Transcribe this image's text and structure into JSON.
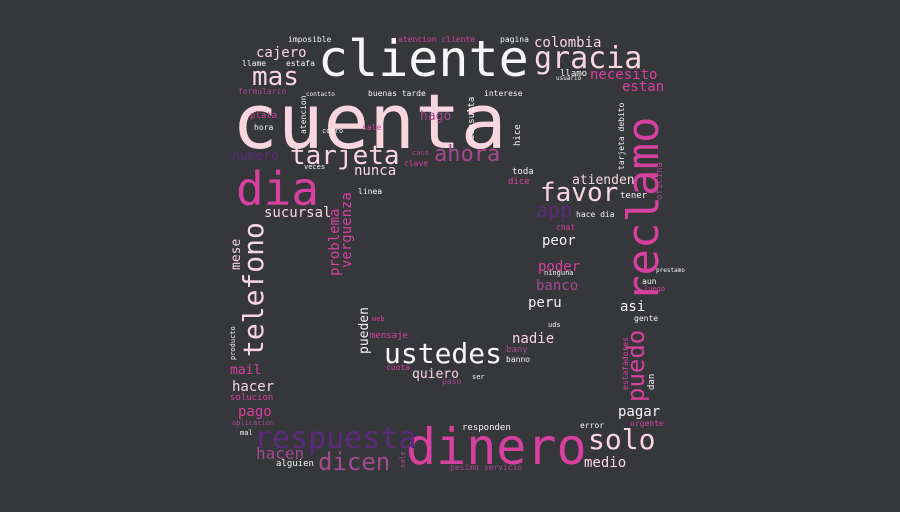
{
  "palette": {
    "background": "#36373a",
    "pale_pink": "#f7d6e0",
    "white": "#f5f5f5",
    "magenta": "#d6409f",
    "purple": "#5b2a7a",
    "orchid": "#a24a8f"
  },
  "words": {
    "cuenta": "cuenta",
    "cliente": "cliente",
    "dinero": "dinero",
    "reclamo": "reclamo",
    "dia": "dia",
    "respuesta": "respuesta",
    "telefono": "telefono",
    "tarjeta": "tarjeta",
    "gracia": "gracia",
    "ustedes": "ustedes",
    "solo": "solo",
    "favor": "favor",
    "dicen": "dicen",
    "mas": "mas",
    "ahora": "ahora",
    "puedo": "puedo",
    "hacen": "hacen",
    "colombia": "colombia",
    "necesito": "necesito",
    "cajero": "cajero",
    "atienden": "atienden",
    "sucursal": "sucursal",
    "problema": "problema",
    "verguenza": "verguenza",
    "nunca": "nunca",
    "peor": "peor",
    "poder": "poder",
    "banco": "banco",
    "peru": "peru",
    "nadie": "nadie",
    "quiero": "quiero",
    "pagar": "pagar",
    "medio": "medio",
    "hacer": "hacer",
    "pago": "pago",
    "mail": "mail",
    "mese": "mese",
    "numero": "numero",
    "app": "app",
    "asi": "asi",
    "pueden": "pueden",
    "estan": "estan",
    "hago": "hago",
    "imposible": "imposible",
    "atencion_cliente": "atencion cliente",
    "pagina": "pagina",
    "llame": "llame",
    "estafa": "estafa",
    "llamo": "llamo",
    "usuario": "usuario",
    "formulario": "formulario",
    "contacto": "contacto",
    "buenas_tarde": "buenas tarde",
    "interese": "interese",
    "plata": "plata",
    "hora": "hora",
    "atencion": "atencion",
    "cobro": "cobro",
    "sale": "sale",
    "consulta": "consulta",
    "hice": "hice",
    "tarjeta_debito": "tarjeta debito",
    "oficina": "oficina",
    "caso": "caso",
    "clave": "clave",
    "veces": "veces",
    "toda": "toda",
    "dice": "dice",
    "linea": "linea",
    "tener": "tener",
    "hace_dia": "hace dia",
    "chat": "chat",
    "ninguna": "ninguna",
    "aun": "aun",
    "luego": "luego",
    "prestamo": "prestamo",
    "gente": "gente",
    "web": "web",
    "mensaje": "mensaje",
    "uds": "uds",
    "bany": "bany",
    "banno": "banno",
    "cuota": "cuota",
    "paso": "paso",
    "ser": "ser",
    "solucion": "solucion",
    "aplicacion": "aplicacion",
    "responden": "responden",
    "error": "error",
    "urgente": "urgente",
    "alguien": "alguien",
    "pesimo_servicio": "pesimo servicio",
    "sale2": "sale",
    "estafadores": "estafadores",
    "dan": "dan",
    "producto": "producto",
    "mal": "mal"
  }
}
